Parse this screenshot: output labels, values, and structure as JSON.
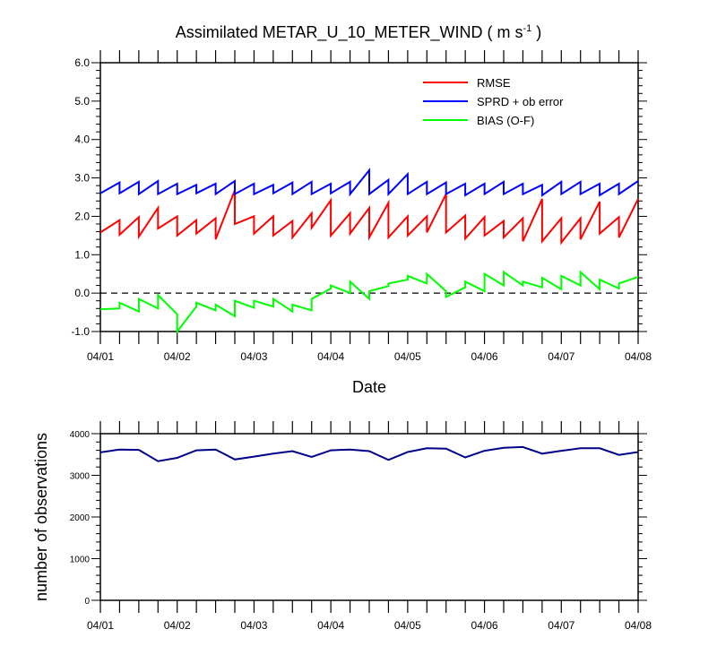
{
  "chart_data": [
    {
      "type": "line",
      "title_main": "Assimilated METAR_U_10_METER_WIND ( m s",
      "title_sup": "-1",
      "title_end": " )",
      "xlabel": "Date",
      "ylabel": "",
      "xlim": [
        0,
        7
      ],
      "ylim": [
        -1.0,
        6.0
      ],
      "yticks": [
        "-1.0",
        "0.0",
        "1.0",
        "2.0",
        "3.0",
        "4.0",
        "5.0",
        "6.0"
      ],
      "ytick_values": [
        -1,
        0,
        1,
        2,
        3,
        4,
        5,
        6
      ],
      "xticks": [
        "04/01",
        "04/02",
        "04/03",
        "04/04",
        "04/05",
        "04/06",
        "04/07",
        "04/08"
      ],
      "xtick_values": [
        0,
        1,
        2,
        3,
        4,
        5,
        6,
        7
      ],
      "reference_line": 0.0,
      "legend_position": "top-right",
      "series": [
        {
          "name": "RMSE",
          "color": "#ff0000",
          "x": [
            0,
            0.25,
            0.25,
            0.5,
            0.5,
            0.75,
            0.75,
            1.0,
            1.0,
            1.25,
            1.25,
            1.5,
            1.5,
            1.75,
            1.75,
            2.0,
            2.0,
            2.25,
            2.25,
            2.5,
            2.5,
            2.75,
            2.75,
            3.0,
            3.0,
            3.25,
            3.25,
            3.5,
            3.5,
            3.75,
            3.75,
            4.0,
            4.0,
            4.25,
            4.25,
            4.5,
            4.5,
            4.75,
            4.75,
            5.0,
            5.0,
            5.25,
            5.25,
            5.5,
            5.5,
            5.75,
            5.75,
            6.0,
            6.0,
            6.25,
            6.25,
            6.5,
            6.5,
            6.75,
            6.75,
            7.0
          ],
          "values": [
            1.58,
            1.9,
            1.52,
            1.98,
            1.47,
            2.22,
            1.68,
            2.0,
            1.5,
            1.9,
            1.55,
            1.95,
            1.4,
            2.68,
            1.8,
            2.0,
            1.55,
            2.0,
            1.5,
            1.88,
            1.45,
            2.08,
            1.7,
            2.42,
            1.5,
            2.08,
            1.55,
            2.22,
            1.45,
            2.35,
            1.45,
            2.0,
            1.5,
            2.0,
            1.58,
            2.58,
            1.58,
            2.02,
            1.42,
            1.98,
            1.5,
            1.88,
            1.45,
            1.95,
            1.35,
            2.45,
            1.35,
            1.95,
            1.32,
            1.95,
            1.4,
            2.38,
            1.55,
            1.98,
            1.45,
            2.45
          ]
        },
        {
          "name": "SPRD + ob error",
          "color": "#0000ff",
          "x": [
            0,
            0.25,
            0.25,
            0.5,
            0.5,
            0.75,
            0.75,
            1.0,
            1.0,
            1.25,
            1.25,
            1.5,
            1.5,
            1.75,
            1.75,
            2.0,
            2.0,
            2.25,
            2.25,
            2.5,
            2.5,
            2.75,
            2.75,
            3.0,
            3.0,
            3.25,
            3.25,
            3.5,
            3.5,
            3.75,
            3.75,
            4.0,
            4.0,
            4.25,
            4.25,
            4.5,
            4.5,
            4.75,
            4.75,
            5.0,
            5.0,
            5.25,
            5.25,
            5.5,
            5.5,
            5.75,
            5.75,
            6.0,
            6.0,
            6.25,
            6.25,
            6.5,
            6.5,
            6.75,
            6.75,
            7.0
          ],
          "values": [
            2.6,
            2.88,
            2.6,
            2.9,
            2.58,
            2.92,
            2.58,
            2.85,
            2.58,
            2.82,
            2.6,
            2.85,
            2.58,
            2.92,
            2.58,
            2.85,
            2.58,
            2.82,
            2.6,
            2.88,
            2.58,
            2.9,
            2.58,
            2.85,
            2.6,
            2.9,
            2.58,
            3.2,
            2.58,
            2.95,
            2.58,
            3.1,
            2.58,
            2.9,
            2.58,
            2.88,
            2.58,
            2.85,
            2.55,
            2.85,
            2.58,
            2.9,
            2.58,
            2.85,
            2.58,
            2.82,
            2.55,
            2.9,
            2.58,
            2.9,
            2.58,
            2.85,
            2.55,
            2.85,
            2.58,
            2.92
          ]
        },
        {
          "name": "BIAS (O-F)",
          "color": "#00ff00",
          "x": [
            0,
            0.25,
            0.25,
            0.5,
            0.5,
            0.75,
            0.75,
            1.0,
            1.0,
            1.25,
            1.25,
            1.5,
            1.5,
            1.75,
            1.75,
            2.0,
            2.0,
            2.25,
            2.25,
            2.5,
            2.5,
            2.75,
            2.75,
            3.0,
            3.0,
            3.25,
            3.25,
            3.5,
            3.5,
            3.75,
            3.75,
            4.0,
            4.0,
            4.25,
            4.25,
            4.5,
            4.5,
            4.75,
            4.75,
            5.0,
            5.0,
            5.25,
            5.25,
            5.5,
            5.5,
            5.75,
            5.75,
            6.0,
            6.0,
            6.25,
            6.25,
            6.5,
            6.5,
            6.75,
            6.75,
            7.0
          ],
          "values": [
            -0.42,
            -0.4,
            -0.25,
            -0.48,
            -0.15,
            -0.4,
            -0.05,
            -0.55,
            -1.0,
            -0.35,
            -0.25,
            -0.45,
            -0.3,
            -0.6,
            -0.2,
            -0.38,
            -0.2,
            -0.35,
            -0.15,
            -0.48,
            -0.3,
            -0.45,
            -0.15,
            0.12,
            0.2,
            0.0,
            0.3,
            -0.15,
            0.05,
            0.18,
            0.25,
            0.35,
            0.45,
            0.25,
            0.5,
            0.05,
            -0.1,
            0.15,
            0.3,
            0.05,
            0.5,
            0.2,
            0.55,
            0.2,
            0.3,
            0.15,
            0.4,
            0.1,
            0.45,
            0.2,
            0.55,
            0.1,
            0.35,
            0.12,
            0.25,
            0.42
          ]
        }
      ]
    },
    {
      "type": "line",
      "title": "",
      "xlabel": "",
      "ylabel": "number of observations",
      "xlim": [
        0,
        7
      ],
      "ylim": [
        0,
        4000
      ],
      "yticks": [
        "0",
        "1000",
        "2000",
        "3000",
        "4000"
      ],
      "ytick_values": [
        0,
        1000,
        2000,
        3000,
        4000
      ],
      "xticks": [
        "04/01",
        "04/02",
        "04/03",
        "04/04",
        "04/05",
        "04/06",
        "04/07",
        "04/08"
      ],
      "xtick_values": [
        0,
        1,
        2,
        3,
        4,
        5,
        6,
        7
      ],
      "series": [
        {
          "name": "number of observations",
          "color": "#00008b",
          "x": [
            0,
            0.25,
            0.5,
            0.75,
            1.0,
            1.25,
            1.5,
            1.75,
            2.0,
            2.25,
            2.5,
            2.75,
            3.0,
            3.25,
            3.5,
            3.75,
            4.0,
            4.25,
            4.5,
            4.75,
            5.0,
            5.25,
            5.5,
            5.75,
            6.0,
            6.25,
            6.5,
            6.75,
            7.0
          ],
          "values": [
            3550,
            3620,
            3610,
            3340,
            3420,
            3600,
            3620,
            3380,
            3450,
            3520,
            3580,
            3440,
            3600,
            3620,
            3580,
            3370,
            3560,
            3650,
            3640,
            3430,
            3590,
            3660,
            3680,
            3520,
            3590,
            3650,
            3650,
            3490,
            3560
          ]
        }
      ]
    }
  ]
}
